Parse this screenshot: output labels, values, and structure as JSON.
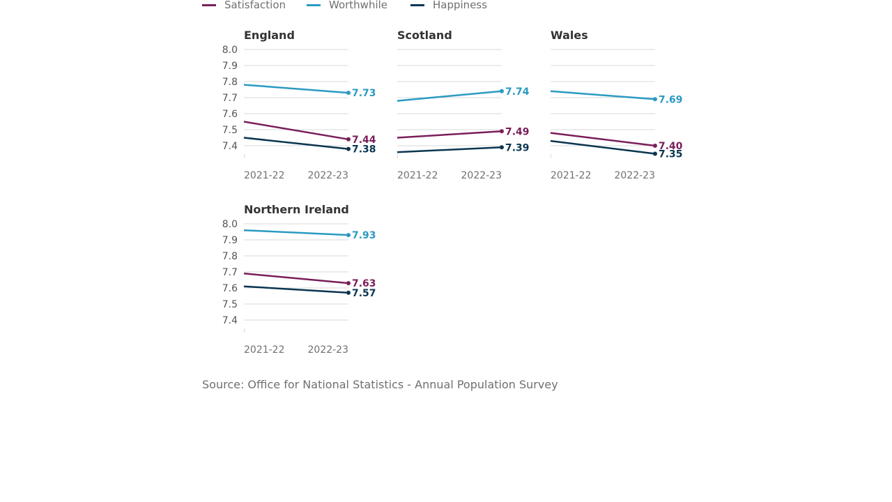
{
  "colors": {
    "Satisfaction": "#7a1e5a",
    "Worthwhile": "#2b9ac1",
    "Happiness": "#0a3550",
    "grid": "#d9d9d9",
    "axis_text": "#555555",
    "title_text": "#333333"
  },
  "source": "Source: Office for National Statistics - Annual Population Survey",
  "chart_data": [
    {
      "type": "line",
      "title": "England",
      "categories": [
        "2021-22",
        "2022-23"
      ],
      "y_ticks": [
        "8.0",
        "7.9",
        "7.8",
        "7.7",
        "7.6",
        "7.5",
        "7.4"
      ],
      "ylim": [
        7.4,
        8.0
      ],
      "legend": "top",
      "grid": true,
      "series": [
        {
          "name": "Satisfaction",
          "values": [
            7.55,
            7.44
          ],
          "end_label": "7.44"
        },
        {
          "name": "Worthwhile",
          "values": [
            7.78,
            7.73
          ],
          "end_label": "7.73"
        },
        {
          "name": "Happiness",
          "values": [
            7.45,
            7.38
          ],
          "end_label": "7.38"
        }
      ]
    },
    {
      "type": "line",
      "title": "Scotland",
      "categories": [
        "2021-22",
        "2022-23"
      ],
      "y_ticks": [],
      "ylim": [
        7.4,
        8.0
      ],
      "grid": true,
      "series": [
        {
          "name": "Satisfaction",
          "values": [
            7.45,
            7.49
          ],
          "end_label": "7.49"
        },
        {
          "name": "Worthwhile",
          "values": [
            7.68,
            7.74
          ],
          "end_label": "7.74"
        },
        {
          "name": "Happiness",
          "values": [
            7.36,
            7.39
          ],
          "end_label": "7.39"
        }
      ]
    },
    {
      "type": "line",
      "title": "Wales",
      "categories": [
        "2021-22",
        "2022-23"
      ],
      "y_ticks": [],
      "ylim": [
        7.4,
        8.0
      ],
      "grid": true,
      "series": [
        {
          "name": "Satisfaction",
          "values": [
            7.48,
            7.4
          ],
          "end_label": "7.40"
        },
        {
          "name": "Worthwhile",
          "values": [
            7.74,
            7.69
          ],
          "end_label": "7.69"
        },
        {
          "name": "Happiness",
          "values": [
            7.43,
            7.35
          ],
          "end_label": "7.35"
        }
      ]
    },
    {
      "type": "line",
      "title": "Northern Ireland",
      "categories": [
        "2021-22",
        "2022-23"
      ],
      "y_ticks": [
        "8.0",
        "7.9",
        "7.8",
        "7.7",
        "7.6",
        "7.5",
        "7.4"
      ],
      "ylim": [
        7.4,
        8.0
      ],
      "grid": true,
      "series": [
        {
          "name": "Satisfaction",
          "values": [
            7.69,
            7.63
          ],
          "end_label": "7.63"
        },
        {
          "name": "Worthwhile",
          "values": [
            7.96,
            7.93
          ],
          "end_label": "7.93"
        },
        {
          "name": "Happiness",
          "values": [
            7.61,
            7.57
          ],
          "end_label": "7.57"
        }
      ]
    }
  ]
}
